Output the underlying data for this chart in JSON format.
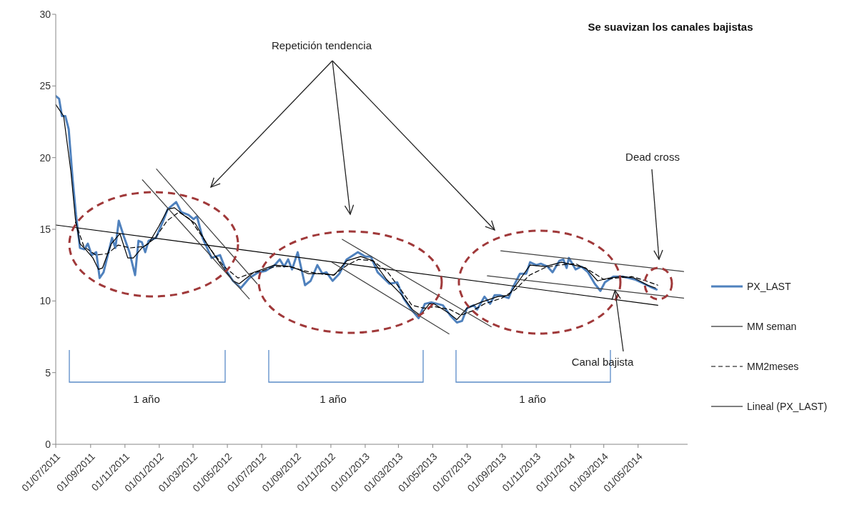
{
  "chart_data": {
    "type": "line",
    "title": "Se suavizan los canales bajistas",
    "annotations": [
      "Repetición tendencia",
      "Dead cross",
      {
        "text": "Canal bajista",
        "x": "2014-03-21",
        "y": 10.74
      },
      "1 año",
      "1 año",
      "1 año"
    ],
    "xlim": [
      "2011-07-01",
      "2014-07-28"
    ],
    "xticks": [
      {
        "value": "2011-07-01",
        "label": "01/07/2011"
      },
      {
        "value": "2011-09-01",
        "label": "01/09/2011"
      },
      {
        "value": "2011-11-01",
        "label": "01/11/2011"
      },
      {
        "value": "2012-01-01",
        "label": "01/01/2012"
      },
      {
        "value": "2012-03-01",
        "label": "01/03/2012"
      },
      {
        "value": "2012-05-01",
        "label": "01/05/2012"
      },
      {
        "value": "2012-07-01",
        "label": "01/07/2012"
      },
      {
        "value": "2012-09-01",
        "label": "01/09/2012"
      },
      {
        "value": "2012-11-01",
        "label": "01/11/2012"
      },
      {
        "value": "2013-01-01",
        "label": "01/01/2013"
      },
      {
        "value": "2013-03-01",
        "label": "01/03/2013"
      },
      {
        "value": "2013-05-01",
        "label": "01/05/2013"
      },
      {
        "value": "2013-07-01",
        "label": "01/07/2013"
      },
      {
        "value": "2013-09-01",
        "label": "01/09/2013"
      },
      {
        "value": "2013-11-01",
        "label": "01/11/2013"
      },
      {
        "value": "2014-01-01",
        "label": "01/01/2014"
      },
      {
        "value": "2014-03-01",
        "label": "01/03/2014"
      },
      {
        "value": "2014-05-01",
        "label": "01/05/2014"
      }
    ],
    "ylim": [
      0,
      30
    ],
    "yticks": [
      0,
      5,
      10,
      15,
      20,
      25,
      30
    ],
    "legend": "right",
    "series": [
      {
        "name": "PX_LAST",
        "color": "#4f81bd",
        "x": [
          "2011-07-01",
          "2011-07-07",
          "2011-07-12",
          "2011-07-18",
          "2011-07-24",
          "2011-07-31",
          "2011-08-06",
          "2011-08-13",
          "2011-08-21",
          "2011-08-27",
          "2011-09-03",
          "2011-09-11",
          "2011-09-17",
          "2011-09-24",
          "2011-10-09",
          "2011-10-15",
          "2011-10-21",
          "2011-10-30",
          "2011-11-09",
          "2011-11-19",
          "2011-11-25",
          "2011-12-01",
          "2011-12-07",
          "2011-12-13",
          "2011-12-26",
          "2012-01-07",
          "2012-01-16",
          "2012-01-31",
          "2012-02-09",
          "2012-02-22",
          "2012-03-02",
          "2012-03-08",
          "2012-03-18",
          "2012-04-03",
          "2012-04-18",
          "2012-04-28",
          "2012-05-11",
          "2012-05-25",
          "2012-06-09",
          "2012-06-25",
          "2012-07-08",
          "2012-07-24",
          "2012-08-02",
          "2012-08-10",
          "2012-08-17",
          "2012-08-24",
          "2012-09-03",
          "2012-09-16",
          "2012-09-26",
          "2012-10-08",
          "2012-10-17",
          "2012-10-24",
          "2012-11-04",
          "2012-11-16",
          "2012-11-29",
          "2012-12-19",
          "2013-01-01",
          "2013-01-11",
          "2013-01-23",
          "2013-02-13",
          "2013-02-27",
          "2013-03-10",
          "2013-03-24",
          "2013-04-06",
          "2013-04-17",
          "2013-04-29",
          "2013-05-19",
          "2013-06-01",
          "2013-06-13",
          "2013-06-22",
          "2013-07-01",
          "2013-07-13",
          "2013-07-19",
          "2013-08-01",
          "2013-08-11",
          "2013-08-19",
          "2013-08-29",
          "2013-09-13",
          "2013-09-20",
          "2013-10-03",
          "2013-10-14",
          "2013-10-21",
          "2013-11-01",
          "2013-11-09",
          "2013-11-21",
          "2013-11-30",
          "2013-12-12",
          "2013-12-19",
          "2013-12-25",
          "2013-12-29",
          "2014-01-10",
          "2014-01-20",
          "2014-02-01",
          "2014-02-13",
          "2014-02-23",
          "2014-03-03",
          "2014-03-18",
          "2014-04-03",
          "2014-04-15",
          "2014-04-25",
          "2014-05-06",
          "2014-05-22",
          "2014-06-03"
        ],
        "values": [
          24.3,
          24.1,
          22.9,
          22.9,
          22.0,
          18.5,
          16.0,
          13.7,
          13.6,
          14.0,
          13.2,
          13.4,
          11.6,
          12.0,
          14.4,
          13.7,
          15.6,
          14.5,
          13.4,
          11.8,
          14.2,
          14.1,
          13.4,
          14.2,
          14.4,
          15.5,
          16.4,
          16.9,
          16.2,
          16.0,
          15.7,
          15.9,
          14.4,
          13.0,
          13.2,
          12.2,
          11.4,
          10.9,
          11.6,
          12.0,
          12.1,
          12.5,
          12.9,
          12.4,
          12.9,
          12.2,
          13.4,
          11.1,
          11.4,
          12.5,
          11.9,
          12.0,
          11.4,
          11.9,
          12.9,
          13.4,
          13.1,
          13.1,
          12.0,
          11.2,
          11.3,
          10.2,
          9.4,
          8.8,
          9.8,
          9.9,
          9.7,
          9.0,
          8.5,
          8.6,
          9.5,
          9.7,
          9.4,
          10.3,
          9.8,
          10.4,
          10.4,
          10.2,
          10.9,
          11.9,
          11.9,
          12.7,
          12.5,
          12.6,
          12.4,
          12.0,
          12.8,
          12.9,
          12.3,
          13.0,
          12.2,
          12.4,
          12.0,
          11.2,
          10.7,
          11.3,
          11.7,
          11.7,
          11.6,
          11.5,
          11.3,
          11.0,
          10.8
        ]
      },
      {
        "name": "MM seman",
        "color": "#000000",
        "x": [
          "2011-07-01",
          "2011-07-15",
          "2011-07-28",
          "2011-08-05",
          "2011-08-13",
          "2011-08-23",
          "2011-09-05",
          "2011-09-15",
          "2011-09-22",
          "2011-10-08",
          "2011-10-23",
          "2011-11-06",
          "2011-11-16",
          "2011-12-01",
          "2011-12-13",
          "2011-12-31",
          "2012-01-16",
          "2012-01-28",
          "2012-02-13",
          "2012-03-05",
          "2012-03-27",
          "2012-04-20",
          "2012-05-11",
          "2012-05-22",
          "2012-06-17",
          "2012-07-24",
          "2012-08-20",
          "2012-09-04",
          "2012-09-22",
          "2012-10-19",
          "2012-11-07",
          "2012-11-29",
          "2012-12-24",
          "2013-01-15",
          "2013-02-08",
          "2013-03-05",
          "2013-03-26",
          "2013-04-09",
          "2013-04-25",
          "2013-05-03",
          "2013-05-28",
          "2013-06-13",
          "2013-07-01",
          "2013-07-25",
          "2013-08-24",
          "2013-09-13",
          "2013-10-03",
          "2013-10-21",
          "2013-11-17",
          "2013-12-16",
          "2014-01-07",
          "2014-01-28",
          "2014-02-18",
          "2014-03-10",
          "2014-04-03",
          "2014-04-24",
          "2014-05-18",
          "2014-06-01"
        ],
        "values": [
          23.7,
          22.9,
          19.0,
          15.7,
          14.0,
          13.6,
          13.0,
          12.2,
          12.3,
          14.0,
          14.7,
          13.0,
          13.0,
          13.7,
          14.0,
          15.2,
          16.4,
          16.5,
          16.0,
          15.4,
          13.9,
          12.5,
          11.4,
          11.2,
          12.0,
          12.5,
          12.4,
          12.2,
          11.9,
          11.9,
          11.8,
          12.8,
          13.1,
          12.8,
          11.5,
          10.5,
          9.4,
          9.0,
          9.8,
          9.8,
          9.2,
          8.7,
          9.5,
          9.9,
          10.3,
          10.4,
          11.5,
          12.5,
          12.4,
          12.7,
          12.5,
          12.3,
          11.4,
          11.6,
          11.7,
          11.6,
          11.1,
          10.9
        ]
      },
      {
        "name": "MM2meses",
        "color": "#000000",
        "line_style": "dashed",
        "x": [
          "2011-08-05",
          "2011-08-20",
          "2011-09-10",
          "2011-10-01",
          "2011-10-20",
          "2011-11-10",
          "2011-12-05",
          "2011-12-25",
          "2012-01-15",
          "2012-02-05",
          "2012-02-25",
          "2012-03-15",
          "2012-04-05",
          "2012-04-25",
          "2012-05-20",
          "2012-06-10",
          "2012-07-01",
          "2012-07-25",
          "2012-08-20",
          "2012-09-15",
          "2012-10-10",
          "2012-11-05",
          "2012-11-30",
          "2012-12-20",
          "2013-01-15",
          "2013-02-10",
          "2013-03-05",
          "2013-03-25",
          "2013-04-15",
          "2013-05-05",
          "2013-06-01",
          "2013-06-20",
          "2013-07-10",
          "2013-08-01",
          "2013-09-01",
          "2013-09-25",
          "2013-10-20",
          "2013-11-15",
          "2013-12-10",
          "2014-01-10",
          "2014-02-05",
          "2014-03-01",
          "2014-03-25",
          "2014-04-20",
          "2014-05-15",
          "2014-06-05"
        ],
        "values": [
          15.5,
          13.8,
          13.2,
          13.3,
          13.9,
          13.7,
          13.8,
          14.4,
          15.6,
          16.2,
          15.7,
          14.6,
          13.4,
          12.4,
          11.6,
          11.9,
          12.1,
          12.4,
          12.4,
          12.1,
          11.9,
          11.8,
          12.5,
          12.9,
          12.8,
          12.0,
          10.8,
          9.7,
          9.5,
          9.6,
          9.4,
          9.0,
          9.3,
          9.8,
          10.2,
          10.8,
          11.8,
          12.3,
          12.5,
          12.6,
          12.1,
          11.5,
          11.6,
          11.7,
          11.4,
          11.1
        ]
      },
      {
        "name": "Lineal (PX_LAST)",
        "color": "#000000",
        "x": [
          "2011-07-01",
          "2014-06-05"
        ],
        "values": [
          15.3,
          9.7
        ]
      },
      {
        "color": "#404040",
        "x": [
          "2011-12-02",
          "2012-06-09"
        ],
        "values": [
          18.45,
          10.15
        ]
      },
      {
        "color": "#404040",
        "x": [
          "2011-12-27",
          "2012-06-23"
        ],
        "values": [
          19.2,
          11.2
        ]
      },
      {
        "color": "#404040",
        "x": [
          "2012-11-21",
          "2013-08-13"
        ],
        "values": [
          14.3,
          8.2
        ]
      },
      {
        "color": "#404040",
        "x": [
          "2012-11-03",
          "2013-05-30"
        ],
        "values": [
          12.7,
          7.7
        ]
      },
      {
        "color": "#404040",
        "x": [
          "2013-08-30",
          "2014-07-21"
        ],
        "values": [
          13.5,
          12.05
        ]
      },
      {
        "color": "#404040",
        "x": [
          "2013-08-06",
          "2014-07-21"
        ],
        "values": [
          11.75,
          10.2
        ]
      }
    ]
  }
}
